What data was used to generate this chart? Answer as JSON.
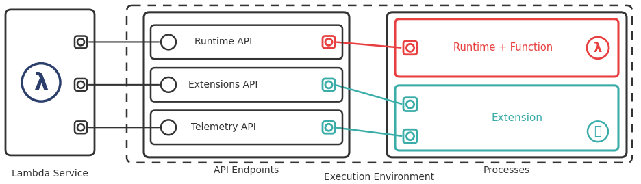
{
  "bg_color": "#ffffff",
  "dark_color": "#333333",
  "red_color": "#e84040",
  "teal_color": "#3aada8",
  "lambda_blue": "#2c3e6b",
  "api_labels": [
    "Runtime API",
    "Extensions API",
    "Telemetry API"
  ],
  "api_colors": [
    "#e84040",
    "#3aada8",
    "#3aada8"
  ],
  "title_lambda": "Lambda Service",
  "title_exec": "Execution Environment",
  "title_api": "API Endpoints",
  "title_proc": "Processes",
  "runtime_label": "Runtime + Function",
  "extension_label": "Extension",
  "figw": 9.37,
  "figh": 2.69,
  "dpi": 100
}
